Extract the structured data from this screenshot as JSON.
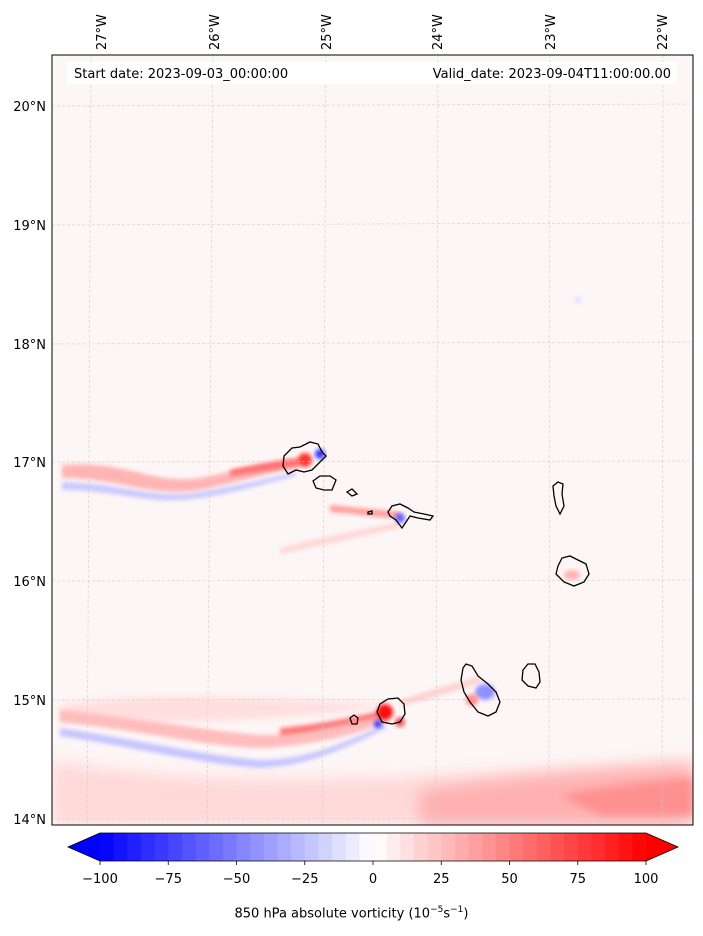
{
  "header": {
    "start_date": "Start date: 2023-09-03_00:00:00",
    "valid_date": "Valid_date: 2023-09-04T11:00:00.00"
  },
  "map": {
    "variable": "850 hPa absolute vorticity",
    "lon_labels": [
      "27°W",
      "26°W",
      "25°W",
      "24°W",
      "23°W",
      "22°W"
    ],
    "lat_labels": [
      "20°N",
      "19°N",
      "18°N",
      "17°N",
      "16°N",
      "15°N",
      "14°N"
    ],
    "islands": [
      "Santo Antão",
      "São Vicente",
      "Santa Luzia",
      "São Nicolau",
      "Sal",
      "Boa Vista",
      "Maio",
      "Santiago",
      "Fogo",
      "Brava"
    ]
  },
  "colorbar": {
    "ticks": [
      "−100",
      "−75",
      "−50",
      "−25",
      "0",
      "25",
      "50",
      "75",
      "100"
    ],
    "min_color": "#0000ff",
    "mid_color": "#ffffff",
    "max_color": "#ff0000",
    "label_main": "850 hPa absolute vorticity (10",
    "label_exp1": "−5",
    "label_mid": "s",
    "label_exp2": "−1",
    "label_end": ")"
  }
}
